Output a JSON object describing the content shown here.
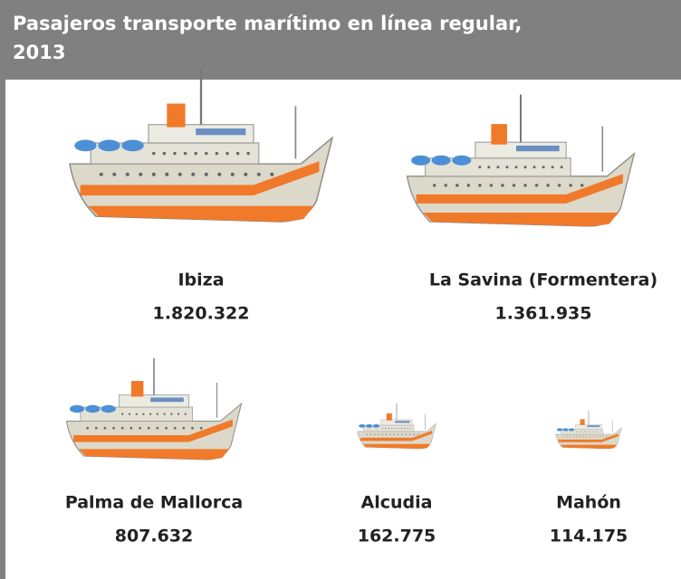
{
  "chart_data": {
    "type": "ship",
    "title": "Pasajeros transporte marítimo en línea regular, 2013",
    "categories": [
      "Ibiza",
      "La Savina (Formentera)",
      "Palma de Mallorca",
      "Alcudia",
      "Mahón"
    ],
    "values": [
      1820322,
      1361935,
      807632,
      162775,
      114175
    ],
    "value_labels": [
      "1.820.322",
      "1.361.935",
      "807.632",
      "162.775",
      "114.175"
    ]
  }
}
